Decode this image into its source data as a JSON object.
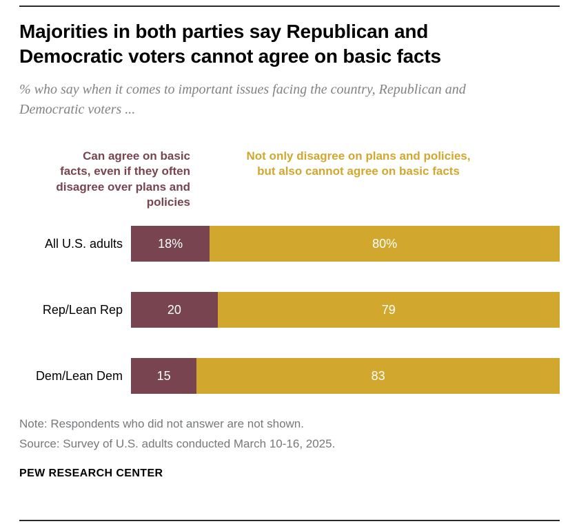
{
  "header": {
    "title": "Majorities in both parties say Republican and Democratic voters cannot agree on basic facts",
    "subtitle": "% who say when it comes to important issues facing the country, Republican and Democratic voters ..."
  },
  "legend": {
    "left": "Can agree on basic facts, even if they often disagree over plans and policies",
    "right": "Not only disagree on plans and policies, but also cannot agree on basic facts"
  },
  "chart_data": {
    "type": "bar",
    "orientation": "horizontal",
    "stacked": true,
    "title": "Majorities in both parties say Republican and Democratic voters cannot agree on basic facts",
    "categories": [
      "All U.S. adults",
      "Rep/Lean Rep",
      "Dem/Lean Dem"
    ],
    "series": [
      {
        "name": "Can agree on basic facts, even if they often disagree over plans and policies",
        "color": "#774450",
        "values": [
          18,
          20,
          15
        ]
      },
      {
        "name": "Not only disagree on plans and policies, but also cannot agree on basic facts",
        "color": "#d2a72e",
        "values": [
          80,
          79,
          83
        ]
      }
    ],
    "value_labels": [
      [
        "18%",
        "80%"
      ],
      [
        "20",
        "79"
      ],
      [
        "15",
        "83"
      ]
    ],
    "xlim": [
      0,
      100
    ],
    "grid": false,
    "legend_position": "top"
  },
  "footer": {
    "note": "Note: Respondents who did not answer are not shown.",
    "source": "Source: Survey of U.S. adults conducted March 10-16, 2025.",
    "brand": "PEW RESEARCH CENTER"
  },
  "colors": {
    "agree": "#774450",
    "disagree": "#d2a72e",
    "muted_text": "#75787b",
    "subtitle_text": "#808285",
    "rule": "#2b2a2b"
  }
}
